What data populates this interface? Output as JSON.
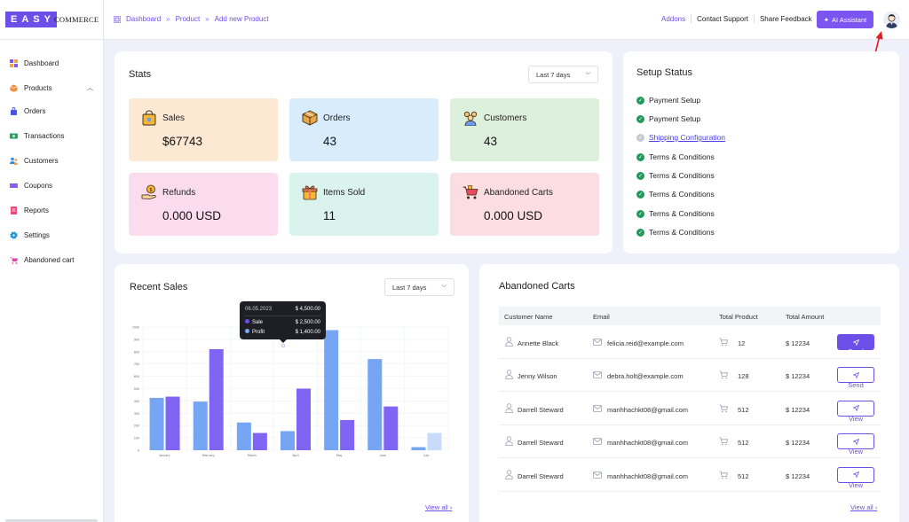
{
  "brand": {
    "logo_left": "EASY",
    "logo_right": "COMMERCE"
  },
  "breadcrumb": [
    "Dashboard",
    "Product",
    "Add new Product"
  ],
  "top_links": [
    "Addons",
    "Contact Support",
    "Share Feedback"
  ],
  "ai_button": "AI Assistant",
  "colors": {
    "accent": "#6c4fe8",
    "success": "#1f9a5b",
    "sale": "#6c7bf0",
    "profit": "#7aa9f5"
  },
  "sidebar": {
    "items": [
      {
        "label": "Dashboard",
        "icon": "grid-icon"
      },
      {
        "label": "Products",
        "icon": "box-icon"
      },
      {
        "label": "Orders",
        "icon": "bag-icon"
      },
      {
        "label": "Transactions",
        "icon": "money-icon"
      },
      {
        "label": "Customers",
        "icon": "users-icon"
      },
      {
        "label": "Coupons",
        "icon": "coupon-icon"
      },
      {
        "label": "Reports",
        "icon": "report-icon"
      },
      {
        "label": "Settings",
        "icon": "gear-icon"
      },
      {
        "label": "Abandoned cart",
        "icon": "cart-icon"
      }
    ]
  },
  "stats": {
    "title": "Stats",
    "period": "Last 7 days",
    "cards": [
      {
        "label": "Sales",
        "value": "$67743"
      },
      {
        "label": "Orders",
        "value": "43"
      },
      {
        "label": "Customers",
        "value": "43"
      },
      {
        "label": "Refunds",
        "value": "0.000 USD"
      },
      {
        "label": "Items Sold",
        "value": "11"
      },
      {
        "label": "Abandoned Carts",
        "value": "0.000 USD"
      }
    ]
  },
  "setup": {
    "title": "Setup Status",
    "items": [
      {
        "label": "Payment Setup",
        "done": true
      },
      {
        "label": "Payment Setup",
        "done": true
      },
      {
        "label": "Shipping Configuration",
        "done": false
      },
      {
        "label": "Terms & Conditions",
        "done": true
      },
      {
        "label": "Terms & Conditions",
        "done": true
      },
      {
        "label": "Terms & Conditions",
        "done": true
      },
      {
        "label": "Terms & Conditions",
        "done": true
      },
      {
        "label": "Terms & Conditions",
        "done": true
      }
    ]
  },
  "recent_sales": {
    "title": "Recent Sales",
    "period": "Last 7 days",
    "view_all": "View all",
    "tooltip": {
      "date": "06.05.2023",
      "total": "$ 4,500.00",
      "sale_label": "Sale",
      "sale_value": "$ 2,500.00",
      "profit_label": "Profit",
      "profit_value": "$ 1,400.00"
    }
  },
  "chart_data": {
    "type": "bar",
    "categories": [
      "January",
      "February",
      "March",
      "April",
      "May",
      "June",
      "July"
    ],
    "series": [
      {
        "name": "",
        "values": [
          425,
          395,
          225,
          155,
          975,
          740,
          25
        ]
      },
      {
        "name": "",
        "values": [
          435,
          820,
          140,
          500,
          245,
          355,
          140
        ]
      }
    ],
    "ylim": [
      0,
      1000
    ],
    "yticks": [
      0,
      100,
      200,
      300,
      400,
      500,
      600,
      700,
      800,
      900,
      1000
    ],
    "grid": true
  },
  "abandoned": {
    "title": "Abandoned Carts",
    "view_all": "View all",
    "columns": [
      "Customer Name",
      "Email",
      "Total Product",
      "Total Amount"
    ],
    "rows": [
      {
        "name": "Annette Black",
        "email": "felicia.reid@example.com",
        "products": "12",
        "amount": "$ 12234",
        "action": "Send",
        "filled": true
      },
      {
        "name": "Jenny Wilson",
        "email": "debra.holt@example.com",
        "products": "128",
        "amount": "$ 12234",
        "action": "Send",
        "filled": false
      },
      {
        "name": "Darrell Steward",
        "email": "manhhachkt08@gmail.com",
        "products": "512",
        "amount": "$ 12234",
        "action": "View",
        "filled": false
      },
      {
        "name": "Darrell Steward",
        "email": "manhhachkt08@gmail.com",
        "products": "512",
        "amount": "$ 12234",
        "action": "View",
        "filled": false
      },
      {
        "name": "Darrell Steward",
        "email": "manhhachkt08@gmail.com",
        "products": "512",
        "amount": "$ 12234",
        "action": "View",
        "filled": false
      }
    ]
  }
}
